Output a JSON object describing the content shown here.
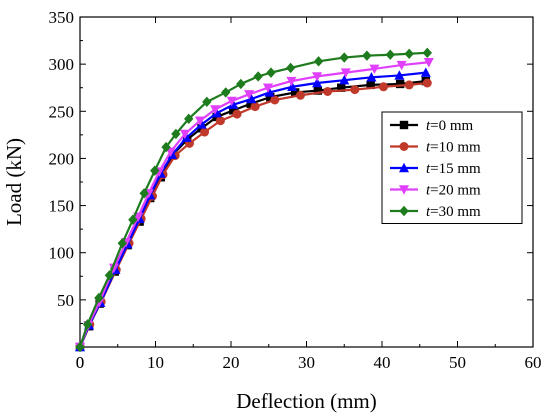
{
  "chart_data": {
    "type": "line",
    "xlabel": "Deflection (mm)",
    "ylabel": "Load (kN)",
    "xlim": [
      0,
      60
    ],
    "ylim": [
      0,
      350
    ],
    "xticks": [
      0,
      10,
      20,
      30,
      40,
      50,
      60
    ],
    "yticks": [
      50,
      100,
      150,
      200,
      250,
      300,
      350
    ],
    "origin_label": "0",
    "grid": false,
    "legend_position": "right",
    "series": [
      {
        "name_var": "t",
        "name_rest": "=0 mm",
        "color": "#000000",
        "marker": "square",
        "points": [
          [
            0,
            0
          ],
          [
            1.2,
            22
          ],
          [
            2.6,
            46
          ],
          [
            4.6,
            80
          ],
          [
            6.3,
            108
          ],
          [
            7.9,
            133
          ],
          [
            9.3,
            158
          ],
          [
            10.7,
            180
          ],
          [
            12.3,
            204
          ],
          [
            14.2,
            220
          ],
          [
            16.1,
            232
          ],
          [
            18.1,
            244
          ],
          [
            20.3,
            251
          ],
          [
            22.6,
            258
          ],
          [
            25.2,
            265
          ],
          [
            28.5,
            270
          ],
          [
            31.5,
            272
          ],
          [
            34.6,
            275
          ],
          [
            38.5,
            278
          ],
          [
            42.4,
            279
          ],
          [
            45.8,
            282
          ]
        ]
      },
      {
        "name_var": "t",
        "name_rest": "=10 mm",
        "color": "#c0392b",
        "marker": "circle",
        "points": [
          [
            0,
            0
          ],
          [
            1.3,
            24
          ],
          [
            2.8,
            48
          ],
          [
            4.8,
            82
          ],
          [
            6.5,
            110
          ],
          [
            8.1,
            136
          ],
          [
            9.6,
            160
          ],
          [
            11.0,
            183
          ],
          [
            12.6,
            203
          ],
          [
            14.5,
            216
          ],
          [
            16.5,
            228
          ],
          [
            18.6,
            240
          ],
          [
            20.8,
            247
          ],
          [
            23.2,
            255
          ],
          [
            25.8,
            262
          ],
          [
            29.2,
            267
          ],
          [
            32.8,
            271
          ],
          [
            36.4,
            273
          ],
          [
            40.2,
            276
          ],
          [
            43.6,
            278
          ],
          [
            46.0,
            280
          ]
        ]
      },
      {
        "name_var": "t",
        "name_rest": "=15 mm",
        "color": "#0000ff",
        "marker": "triangle-up",
        "points": [
          [
            0,
            0
          ],
          [
            1.2,
            23
          ],
          [
            2.7,
            47
          ],
          [
            4.7,
            82
          ],
          [
            6.3,
            109
          ],
          [
            7.9,
            136
          ],
          [
            9.3,
            161
          ],
          [
            10.7,
            184
          ],
          [
            12.2,
            204
          ],
          [
            14.1,
            222
          ],
          [
            16.1,
            236
          ],
          [
            18.1,
            248
          ],
          [
            20.3,
            257
          ],
          [
            22.7,
            263
          ],
          [
            25.1,
            270
          ],
          [
            28.1,
            276
          ],
          [
            31.4,
            280
          ],
          [
            35.0,
            283
          ],
          [
            38.6,
            286
          ],
          [
            42.3,
            288
          ],
          [
            45.8,
            291
          ]
        ]
      },
      {
        "name_var": "t",
        "name_rest": "=20 mm",
        "color": "#e040fb",
        "marker": "triangle-down",
        "points": [
          [
            0,
            0
          ],
          [
            1.1,
            23
          ],
          [
            2.6,
            48
          ],
          [
            4.5,
            84
          ],
          [
            6.1,
            111
          ],
          [
            7.7,
            138
          ],
          [
            9.1,
            163
          ],
          [
            10.5,
            186
          ],
          [
            12.0,
            207
          ],
          [
            13.9,
            226
          ],
          [
            15.9,
            240
          ],
          [
            17.9,
            252
          ],
          [
            20.1,
            261
          ],
          [
            22.4,
            268
          ],
          [
            24.9,
            275
          ],
          [
            28.0,
            282
          ],
          [
            31.4,
            287
          ],
          [
            35.2,
            291
          ],
          [
            39.0,
            295
          ],
          [
            42.6,
            299
          ],
          [
            46.2,
            302
          ]
        ]
      },
      {
        "name_var": "t",
        "name_rest": "=30 mm",
        "color": "#1e7b1e",
        "marker": "diamond",
        "points": [
          [
            0,
            0
          ],
          [
            1.0,
            24
          ],
          [
            2.5,
            52
          ],
          [
            3.9,
            76
          ],
          [
            5.6,
            110
          ],
          [
            7.0,
            135
          ],
          [
            8.5,
            163
          ],
          [
            9.9,
            187
          ],
          [
            11.4,
            212
          ],
          [
            12.7,
            226
          ],
          [
            14.4,
            242
          ],
          [
            16.8,
            260
          ],
          [
            19.3,
            270
          ],
          [
            21.3,
            279
          ],
          [
            23.6,
            287
          ],
          [
            25.3,
            291
          ],
          [
            27.9,
            296
          ],
          [
            31.6,
            303
          ],
          [
            35.0,
            307
          ],
          [
            38.0,
            309
          ],
          [
            41.1,
            310
          ],
          [
            43.6,
            311
          ],
          [
            46.0,
            312
          ]
        ]
      }
    ]
  }
}
